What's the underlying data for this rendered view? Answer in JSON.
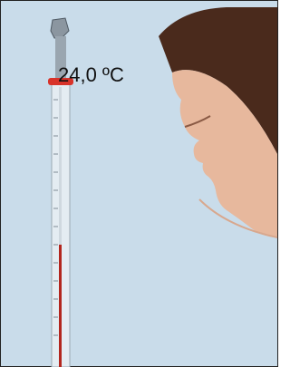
{
  "image": {
    "label": "24,0 ºC"
  }
}
